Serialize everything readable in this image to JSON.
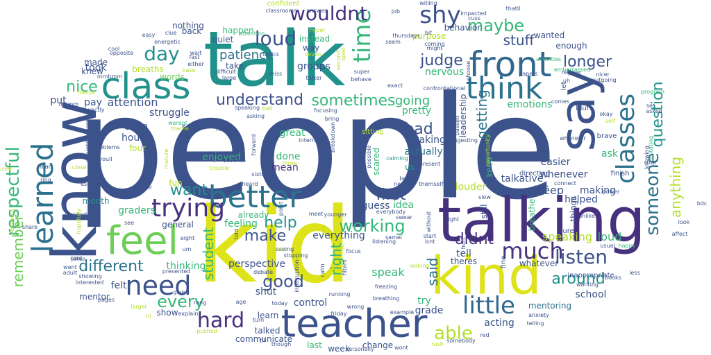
{
  "palette": {
    "dark_purple": "#46317e",
    "indigo": "#3b528b",
    "blue": "#31688e",
    "steel": "#2c728e",
    "teal": "#21918c",
    "green_teal": "#1fa088",
    "green": "#35b779",
    "light_green": "#6ece58",
    "lime": "#b5de2b",
    "yellow": "#dde318"
  },
  "words": [
    {
      "text": "people"
    },
    {
      "text": "kid"
    },
    {
      "text": "talk"
    },
    {
      "text": "talking"
    },
    {
      "text": "know"
    },
    {
      "text": "say"
    },
    {
      "text": "teacher"
    },
    {
      "text": "kind"
    },
    {
      "text": "feel"
    },
    {
      "text": "class"
    },
    {
      "text": "front"
    },
    {
      "text": "better"
    },
    {
      "text": "think"
    },
    {
      "text": "learned"
    },
    {
      "text": "trying"
    },
    {
      "text": "need"
    },
    {
      "text": "classes"
    },
    {
      "text": "little"
    },
    {
      "text": "hard"
    },
    {
      "text": "time"
    },
    {
      "text": "shy"
    },
    {
      "text": "much"
    },
    {
      "text": "loud"
    },
    {
      "text": "listen"
    },
    {
      "text": "day"
    },
    {
      "text": "someone"
    },
    {
      "text": "wouldnt"
    },
    {
      "text": "respectful"
    },
    {
      "text": "sometimes"
    },
    {
      "text": "understand"
    },
    {
      "text": "working"
    },
    {
      "text": "good"
    },
    {
      "text": "every"
    },
    {
      "text": "able"
    },
    {
      "text": "maybe"
    },
    {
      "text": "question"
    },
    {
      "text": "different"
    },
    {
      "text": "remember"
    },
    {
      "text": "want"
    },
    {
      "text": "help"
    },
    {
      "text": "make"
    },
    {
      "text": "longer"
    },
    {
      "text": "judge"
    },
    {
      "text": "nice"
    },
    {
      "text": "around"
    },
    {
      "text": "first"
    },
    {
      "text": "bad"
    },
    {
      "text": "didnt"
    },
    {
      "text": "anything"
    },
    {
      "text": "stuff"
    },
    {
      "text": "student"
    },
    {
      "text": "said"
    },
    {
      "text": "right"
    },
    {
      "text": "getting"
    },
    {
      "text": "going"
    },
    {
      "text": "speaking"
    },
    {
      "text": "loud"
    },
    {
      "text": "patience"
    },
    {
      "text": "pay"
    },
    {
      "text": "attention"
    },
    {
      "text": "talkative"
    },
    {
      "text": "whenever"
    },
    {
      "text": "school"
    },
    {
      "text": "easier"
    },
    {
      "text": "helped"
    },
    {
      "text": "pretty"
    },
    {
      "text": "took"
    },
    {
      "text": "made"
    },
    {
      "text": "knew"
    },
    {
      "text": "already"
    },
    {
      "text": "mean"
    },
    {
      "text": "taking"
    },
    {
      "text": "guess"
    },
    {
      "text": "idea"
    },
    {
      "text": "enjoyed"
    },
    {
      "text": "acting"
    },
    {
      "text": "grade"
    },
    {
      "text": "louder"
    },
    {
      "text": "mentoring"
    },
    {
      "text": "deep"
    },
    {
      "text": "emotions"
    },
    {
      "text": "actually"
    },
    {
      "text": "ask"
    },
    {
      "text": "making"
    },
    {
      "text": "groups"
    },
    {
      "text": "words"
    },
    {
      "text": "thinking"
    },
    {
      "text": "fun"
    },
    {
      "text": "show"
    },
    {
      "text": "mentor"
    },
    {
      "text": "felt"
    },
    {
      "text": "struggle"
    },
    {
      "text": "hour"
    },
    {
      "text": "four"
    },
    {
      "text": "even"
    },
    {
      "text": "put"
    },
    {
      "text": "one"
    },
    {
      "text": "month"
    },
    {
      "text": "graders"
    },
    {
      "text": "general"
    },
    {
      "text": "feeling"
    },
    {
      "text": "everything"
    },
    {
      "text": "speak"
    },
    {
      "text": "shut"
    },
    {
      "text": "perspective"
    },
    {
      "text": "tell"
    },
    {
      "text": "theres"
    },
    {
      "text": "try"
    },
    {
      "text": "control"
    },
    {
      "text": "last"
    },
    {
      "text": "week"
    },
    {
      "text": "change"
    },
    {
      "text": "learn"
    },
    {
      "text": "talked"
    },
    {
      "text": "communicate"
    },
    {
      "text": "friday"
    },
    {
      "text": "whatever"
    },
    {
      "text": "nervous"
    },
    {
      "text": "purpose"
    },
    {
      "text": "instead"
    },
    {
      "text": "way"
    },
    {
      "text": "happen"
    },
    {
      "text": "nothing"
    },
    {
      "text": "back"
    },
    {
      "text": "quiet"
    },
    {
      "text": "take"
    },
    {
      "text": "confident"
    },
    {
      "text": "behavior"
    },
    {
      "text": "wanted"
    },
    {
      "text": "enough"
    },
    {
      "text": "breaths"
    },
    {
      "text": "great"
    },
    {
      "text": "done"
    },
    {
      "text": "scared"
    },
    {
      "text": "us"
    },
    {
      "text": "keep"
    },
    {
      "text": "sitting"
    },
    {
      "text": "leadership"
    },
    {
      "text": "still"
    },
    {
      "text": "fine"
    },
    {
      "text": "breathe"
    },
    {
      "text": "things"
    },
    {
      "text": "let"
    },
    {
      "text": "sure"
    },
    {
      "text": "brave"
    },
    {
      "text": "finish"
    },
    {
      "text": "blurt"
    },
    {
      "text": "okay"
    },
    {
      "text": "self"
    },
    {
      "text": "wasnt"
    },
    {
      "text": "directing"
    },
    {
      "text": "whenevrr"
    },
    {
      "text": "look"
    },
    {
      "text": "affect"
    },
    {
      "text": "bdc"
    },
    {
      "text": "irritating"
    },
    {
      "text": "knowing"
    },
    {
      "text": "unlike"
    },
    {
      "text": "power"
    },
    {
      "text": "happy"
    },
    {
      "text": "usual"
    },
    {
      "text": "inappropriate"
    },
    {
      "text": "wanting"
    },
    {
      "text": "books"
    },
    {
      "text": "telling"
    },
    {
      "text": "anxiety"
    },
    {
      "text": "less"
    },
    {
      "text": "stop"
    },
    {
      "text": "program"
    },
    {
      "text": "asked"
    },
    {
      "text": "set"
    },
    {
      "text": "outgoing"
    },
    {
      "text": "nicer"
    },
    {
      "text": "regular"
    },
    {
      "text": "papers"
    },
    {
      "text": "uh"
    },
    {
      "text": "embarrassed"
    },
    {
      "text": "activities"
    },
    {
      "text": "comes"
    },
    {
      "text": "thatll"
    },
    {
      "text": "impacted"
    },
    {
      "text": "cuss"
    },
    {
      "text": "willing"
    },
    {
      "text": "job"
    },
    {
      "text": "classrooms"
    },
    {
      "text": "answer"
    },
    {
      "text": "thursdays"
    },
    {
      "text": "coming"
    },
    {
      "text": "might"
    },
    {
      "text": "seem"
    },
    {
      "text": "hyper"
    },
    {
      "text": "bit"
    },
    {
      "text": "cool"
    },
    {
      "text": "opposite"
    },
    {
      "text": "easy"
    },
    {
      "text": "clue"
    },
    {
      "text": "energetic"
    },
    {
      "text": "attention"
    },
    {
      "text": "seven"
    },
    {
      "text": "topics"
    },
    {
      "text": "wait"
    },
    {
      "text": "fast"
    },
    {
      "text": "either"
    },
    {
      "text": "base"
    },
    {
      "text": "difficult"
    },
    {
      "text": "large"
    },
    {
      "text": "miss"
    },
    {
      "text": "talker"
    },
    {
      "text": "super"
    },
    {
      "text": "behave"
    },
    {
      "text": "exact"
    },
    {
      "text": "confrontational"
    },
    {
      "text": "choose"
    },
    {
      "text": "second"
    },
    {
      "text": "open"
    },
    {
      "text": "mmhmm"
    },
    {
      "text": "mhmm"
    },
    {
      "text": "freeze"
    },
    {
      "text": "exactly"
    },
    {
      "text": "werent"
    },
    {
      "text": "theme"
    },
    {
      "text": "view"
    },
    {
      "text": "speaking"
    },
    {
      "text": "bell"
    },
    {
      "text": "asking"
    },
    {
      "text": "focusing"
    },
    {
      "text": "bring"
    },
    {
      "text": "read"
    },
    {
      "text": "interrupt"
    },
    {
      "text": "breakdown"
    },
    {
      "text": "forward"
    },
    {
      "text": "three"
    },
    {
      "text": "seventh"
    },
    {
      "text": "trouble"
    },
    {
      "text": "sixth"
    },
    {
      "text": "heard"
    },
    {
      "text": "social"
    },
    {
      "text": "two"
    },
    {
      "text": "possible"
    },
    {
      "text": "third"
    },
    {
      "text": "calming"
    },
    {
      "text": "present"
    },
    {
      "text": "themself"
    },
    {
      "text": "needed"
    },
    {
      "text": "benji"
    },
    {
      "text": "suggesting"
    },
    {
      "text": "passed"
    },
    {
      "text": "opportunity"
    },
    {
      "text": "slow"
    },
    {
      "text": "came"
    },
    {
      "text": "connect"
    },
    {
      "text": "problems"
    },
    {
      "text": "youll"
    },
    {
      "text": "straightforward"
    },
    {
      "text": "close"
    },
    {
      "text": "mature"
    },
    {
      "text": "tablemates"
    },
    {
      "text": "especially"
    },
    {
      "text": "harder"
    },
    {
      "text": "stopped"
    },
    {
      "text": "hopefully"
    },
    {
      "text": "ring"
    },
    {
      "text": "hear"
    },
    {
      "text": "used"
    },
    {
      "text": "behaving"
    },
    {
      "text": "share"
    },
    {
      "text": "see"
    },
    {
      "text": "told"
    },
    {
      "text": "point"
    },
    {
      "text": "meet"
    },
    {
      "text": "younger"
    },
    {
      "text": "everybody"
    },
    {
      "text": "swear"
    },
    {
      "text": "fight"
    },
    {
      "text": "without"
    },
    {
      "text": "start"
    },
    {
      "text": "isnt"
    },
    {
      "text": "hurt"
    },
    {
      "text": "samei"
    },
    {
      "text": "listening"
    },
    {
      "text": "ot"
    },
    {
      "text": "focus"
    },
    {
      "text": "stopping"
    },
    {
      "text": "seeing"
    },
    {
      "text": "best"
    },
    {
      "text": "eight"
    },
    {
      "text": "um"
    },
    {
      "text": "go"
    },
    {
      "text": "cant"
    },
    {
      "text": "jokes"
    },
    {
      "text": "went"
    },
    {
      "text": "adult"
    },
    {
      "text": "interested"
    },
    {
      "text": "showing"
    },
    {
      "text": "presented"
    },
    {
      "text": "debate"
    },
    {
      "text": "interruption"
    },
    {
      "text": "calm"
    },
    {
      "text": "filters"
    },
    {
      "text": "looking"
    },
    {
      "text": "freezing"
    },
    {
      "text": "breathing"
    },
    {
      "text": "pages"
    },
    {
      "text": "larger"
    },
    {
      "text": "hi"
    },
    {
      "text": "explain"
    },
    {
      "text": "rang"
    },
    {
      "text": "give"
    },
    {
      "text": "pushed"
    },
    {
      "text": "turn"
    },
    {
      "text": "age"
    },
    {
      "text": "today"
    },
    {
      "text": "wrong"
    },
    {
      "text": "example"
    },
    {
      "text": "running"
    },
    {
      "text": "rush"
    },
    {
      "text": "somebody"
    },
    {
      "text": "red"
    },
    {
      "text": "wont"
    },
    {
      "text": "personally"
    },
    {
      "text": "though"
    },
    {
      "text": "til"
    }
  ]
}
